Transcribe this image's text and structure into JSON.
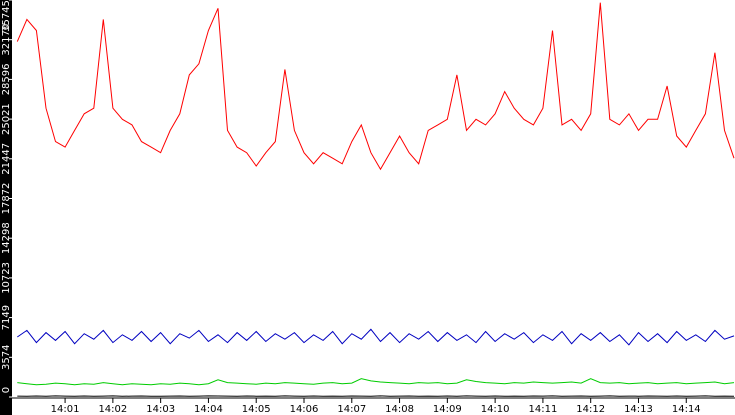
{
  "chart_data": {
    "type": "line",
    "x": [
      0,
      0.2,
      0.4,
      0.6,
      0.8,
      1,
      1.2,
      1.4,
      1.6,
      1.8,
      2,
      2.2,
      2.4,
      2.6,
      2.8,
      3,
      3.2,
      3.4,
      3.6,
      3.8,
      4,
      4.2,
      4.4,
      4.6,
      4.8,
      5,
      5.2,
      5.4,
      5.6,
      5.8,
      6,
      6.2,
      6.4,
      6.6,
      6.8,
      7,
      7.2,
      7.4,
      7.6,
      7.8,
      8,
      8.2,
      8.4,
      8.6,
      8.8,
      9,
      9.2,
      9.4,
      9.6,
      9.8,
      10,
      10.2,
      10.4,
      10.6,
      10.8,
      11,
      11.2,
      11.4,
      11.6,
      11.8,
      12,
      12.2,
      12.4,
      12.6,
      12.8,
      13,
      13.2,
      13.4,
      13.6,
      13.8,
      14,
      14.2,
      14.4,
      14.6,
      14.8,
      15
    ],
    "series": [
      {
        "color": "#ff0000",
        "values": [
          32000,
          34000,
          33000,
          26000,
          23000,
          22500,
          24000,
          25500,
          26000,
          34000,
          26000,
          25000,
          24500,
          23000,
          22500,
          22000,
          24000,
          25500,
          29000,
          30000,
          33000,
          35000,
          24000,
          22500,
          22000,
          20800,
          22000,
          23000,
          29500,
          24000,
          22000,
          21000,
          22000,
          21500,
          21000,
          23000,
          24500,
          22000,
          20500,
          22000,
          23500,
          22000,
          21000,
          24000,
          24500,
          25000,
          29000,
          24000,
          25000,
          24500,
          25500,
          27500,
          26000,
          25000,
          24500,
          26000,
          33000,
          24500,
          25000,
          24000,
          25500,
          35500,
          25000,
          24500,
          25500,
          24000,
          25000,
          25000,
          28000,
          23500,
          22500,
          24000,
          25500,
          31000,
          24000,
          21500
        ]
      },
      {
        "color": "#0000c0",
        "values": [
          5400,
          6000,
          4900,
          5800,
          5100,
          5900,
          4800,
          5700,
          5200,
          6000,
          4900,
          5600,
          5100,
          5900,
          5000,
          5800,
          4800,
          5700,
          5300,
          6000,
          5000,
          5600,
          4900,
          5800,
          5100,
          5900,
          5000,
          5700,
          5200,
          5800,
          4900,
          5600,
          5100,
          5900,
          4800,
          5700,
          5200,
          6100,
          5000,
          5800,
          4900,
          5700,
          5200,
          5900,
          5000,
          5800,
          5100,
          5600,
          4900,
          5900,
          5000,
          5700,
          5200,
          5800,
          4900,
          5600,
          5100,
          5900,
          4800,
          5700,
          5100,
          5800,
          5000,
          5600,
          4700,
          5800,
          5000,
          5700,
          4900,
          5900,
          5100,
          5600,
          5000,
          6000,
          5200,
          5500
        ]
      },
      {
        "color": "#00cc00",
        "values": [
          1300,
          1200,
          1100,
          1150,
          1250,
          1200,
          1100,
          1200,
          1150,
          1300,
          1200,
          1100,
          1200,
          1150,
          1100,
          1200,
          1150,
          1250,
          1200,
          1100,
          1200,
          1550,
          1300,
          1250,
          1200,
          1150,
          1250,
          1200,
          1300,
          1250,
          1200,
          1150,
          1250,
          1300,
          1200,
          1250,
          1650,
          1450,
          1350,
          1300,
          1250,
          1200,
          1300,
          1250,
          1300,
          1200,
          1250,
          1550,
          1400,
          1300,
          1250,
          1200,
          1300,
          1250,
          1350,
          1300,
          1250,
          1300,
          1350,
          1250,
          1650,
          1300,
          1250,
          1300,
          1200,
          1250,
          1300,
          1200,
          1250,
          1300,
          1200,
          1250,
          1300,
          1350,
          1200,
          1300
        ]
      },
      {
        "color": "#000000",
        "values": [
          80,
          60,
          90,
          70,
          100,
          80,
          60,
          90,
          70,
          80,
          100,
          60,
          80,
          90,
          70,
          60,
          80,
          90,
          70,
          80,
          100,
          90,
          80,
          60,
          90,
          70,
          80,
          60,
          100,
          80,
          70,
          90,
          60,
          80,
          70,
          90,
          80,
          60,
          100,
          70,
          80,
          90,
          60,
          80,
          70,
          90,
          60,
          100,
          80,
          70,
          90,
          60,
          80,
          70,
          90,
          80,
          100,
          60,
          80,
          90,
          70,
          80,
          100,
          60,
          80,
          70,
          90,
          80,
          60,
          90,
          70,
          80,
          100,
          60,
          80,
          70
        ]
      }
    ],
    "xlim": [
      -0.09,
      15.02
    ],
    "xticks": [
      {
        "value": 1,
        "label": "14:01"
      },
      {
        "value": 2,
        "label": "14:02"
      },
      {
        "value": 3,
        "label": "14:03"
      },
      {
        "value": 4,
        "label": "14:04"
      },
      {
        "value": 5,
        "label": "14:05"
      },
      {
        "value": 6,
        "label": "14:06"
      },
      {
        "value": 7,
        "label": "14:07"
      },
      {
        "value": 8,
        "label": "14:08"
      },
      {
        "value": 9,
        "label": "14:09"
      },
      {
        "value": 10,
        "label": "14:10"
      },
      {
        "value": 11,
        "label": "14:11"
      },
      {
        "value": 12,
        "label": "14:12"
      },
      {
        "value": 13,
        "label": "14:13"
      },
      {
        "value": 14,
        "label": "14:14"
      }
    ],
    "ylim": [
      0,
      35745
    ],
    "yticks": [
      0,
      3574,
      7149,
      10723,
      14298,
      17872,
      21447,
      25021,
      28596,
      32170,
      35745
    ]
  }
}
